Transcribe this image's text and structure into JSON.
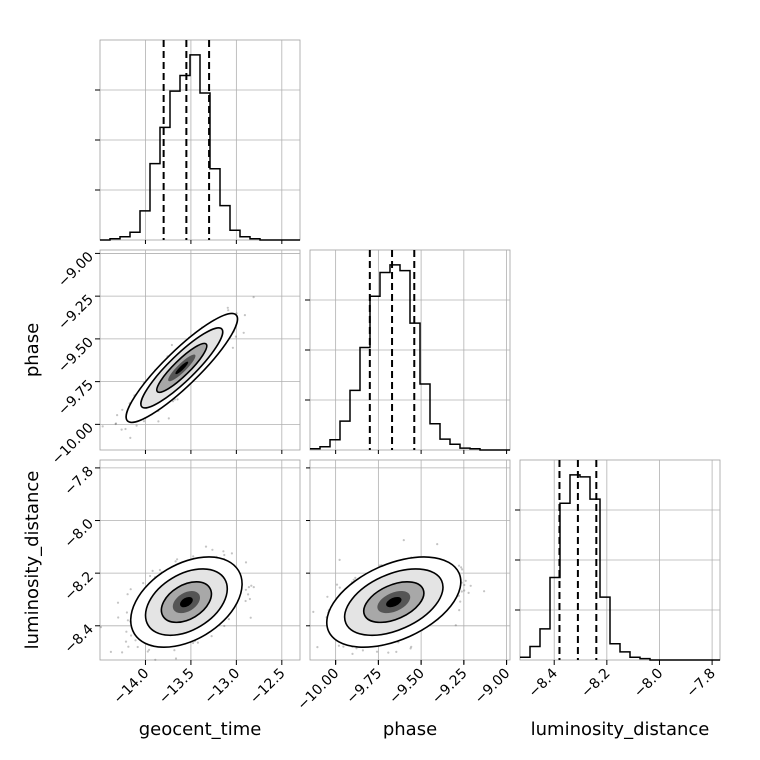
{
  "chart_data": {
    "type": "corner",
    "parameters": [
      "geocent_time",
      "phase",
      "luminosity_distance"
    ],
    "axis_labels": {
      "geocent_time": "geocent_time",
      "phase": "phase",
      "luminosity_distance": "luminosity_distance"
    },
    "ranges": {
      "geocent_time": [
        -14.5,
        -12.3
      ],
      "phase": [
        -10.15,
        -8.98
      ],
      "luminosity_distance": [
        -8.53,
        -7.77
      ]
    },
    "ticks": {
      "geocent_time": [
        -14.0,
        -13.5,
        -13.0,
        -12.5
      ],
      "phase": [
        -10.0,
        -9.75,
        -9.5,
        -9.25,
        -9.0
      ],
      "luminosity_distance": [
        -8.4,
        -8.2,
        -8.0,
        -7.8
      ]
    },
    "tick_labels": {
      "geocent_time": [
        "−14.0",
        "−13.5",
        "−13.0",
        "−12.5"
      ],
      "phase": [
        "−10.00",
        "−9.75",
        "−9.50",
        "−9.25",
        "−9.00"
      ],
      "luminosity_distance": [
        "−8.4",
        "−8.2",
        "−8.0",
        "−7.8"
      ]
    },
    "phase_row_tick_labels": [
      "−10.00",
      "−9.75",
      "−9.50",
      "−9.25",
      "−9.00"
    ],
    "histograms": {
      "geocent_time": {
        "bins": [
          -14.5,
          -14.39,
          -14.28,
          -14.17,
          -14.06,
          -13.95,
          -13.84,
          -13.73,
          -13.62,
          -13.51,
          -13.4,
          -13.29,
          -13.18,
          -13.07,
          -12.96,
          -12.85,
          -12.74,
          -12.63,
          -12.52,
          -12.41,
          -12.3
        ],
        "counts": [
          0,
          2,
          5,
          12,
          45,
          118,
          174,
          230,
          254,
          286,
          227,
          110,
          53,
          15,
          5,
          2,
          0,
          0,
          0,
          0
        ],
        "quantiles": [
          -13.8,
          -13.55,
          -13.3
        ]
      },
      "phase": {
        "bins": [
          -10.15,
          -10.0915,
          -10.033,
          -9.9745,
          -9.916,
          -9.8575,
          -9.799,
          -9.7405,
          -9.682,
          -9.6235,
          -9.565,
          -9.5065,
          -9.448,
          -9.3895,
          -9.331,
          -9.2725,
          -9.214,
          -9.1555,
          -9.097,
          -9.0385,
          -8.98
        ],
        "counts": [
          2,
          5,
          16,
          45,
          93,
          160,
          240,
          277,
          289,
          280,
          198,
          103,
          41,
          17,
          9,
          3,
          2,
          0,
          0,
          0
        ],
        "quantiles": [
          -9.8,
          -9.67,
          -9.54
        ]
      },
      "luminosity_distance": {
        "bins": [
          -8.53,
          -8.492,
          -8.454,
          -8.416,
          -8.378,
          -8.34,
          -8.302,
          -8.264,
          -8.226,
          -8.188,
          -8.15,
          -8.112,
          -8.074,
          -8.036,
          -7.998,
          -7.96,
          -7.922,
          -7.884,
          -7.846,
          -7.808,
          -7.77
        ],
        "counts": [
          4,
          20,
          46,
          122,
          232,
          274,
          271,
          238,
          93,
          24,
          12,
          4,
          2,
          0,
          0,
          0,
          0,
          0,
          0,
          0
        ],
        "quantiles": [
          -8.38,
          -8.31,
          -8.24
        ]
      }
    },
    "pairs": [
      {
        "x": "geocent_time",
        "y": "phase",
        "mean": [
          -13.6,
          -9.67
        ],
        "sd": [
          0.25,
          0.13
        ],
        "corr": 0.9
      },
      {
        "x": "geocent_time",
        "y": "luminosity_distance",
        "mean": [
          -13.55,
          -8.31
        ],
        "sd": [
          0.25,
          0.07
        ],
        "corr": 0.4
      },
      {
        "x": "phase",
        "y": "luminosity_distance",
        "mean": [
          -9.66,
          -8.31
        ],
        "sd": [
          0.16,
          0.07
        ],
        "corr": 0.45
      }
    ],
    "grid": true,
    "colors": {
      "line": "#000000",
      "points": "#555555",
      "grid": "#b0b0b0",
      "frame": "#a0a0a0"
    }
  }
}
